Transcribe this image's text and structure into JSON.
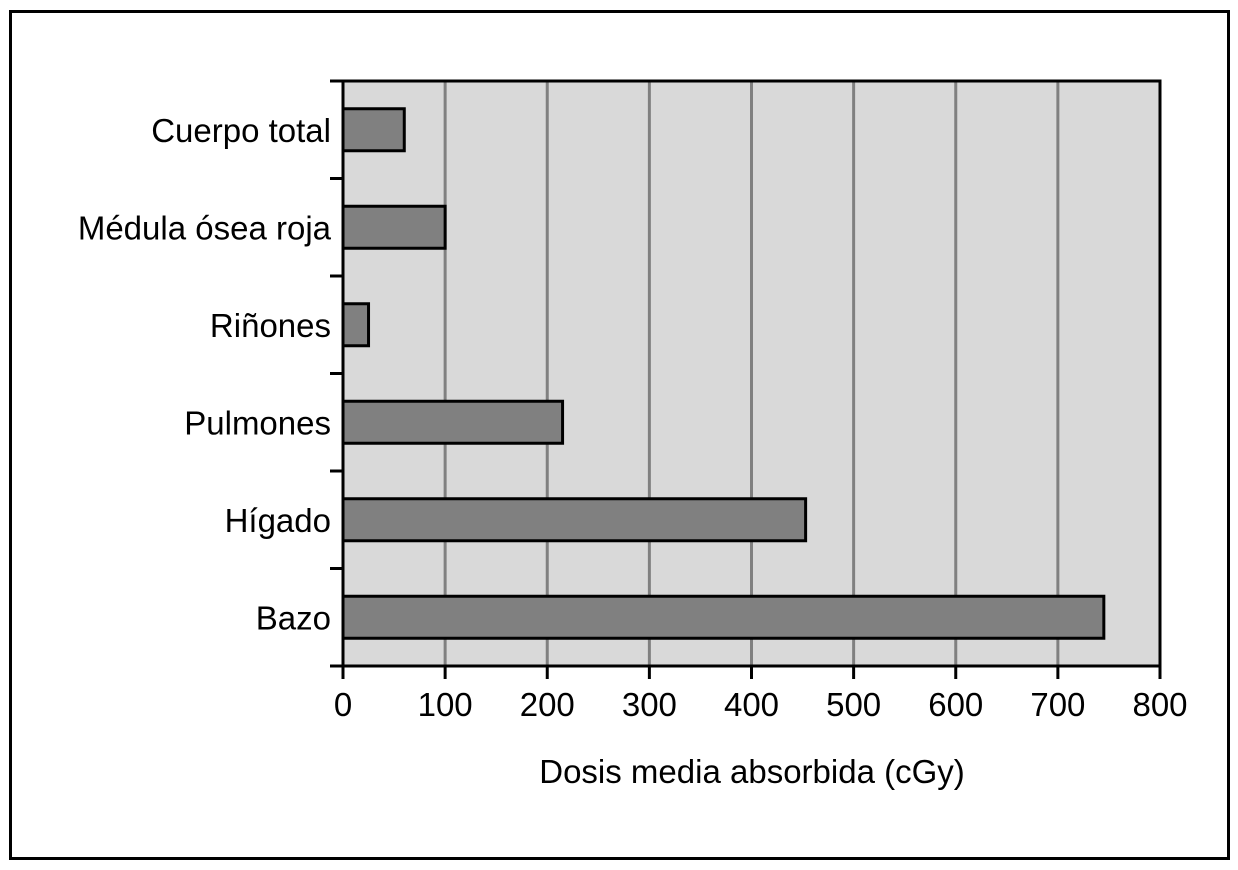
{
  "chart_data": {
    "type": "bar",
    "orientation": "horizontal",
    "categories": [
      "Cuerpo total",
      "Médula ósea roja",
      "Riñones",
      "Pulmones",
      "Hígado",
      "Bazo"
    ],
    "values": [
      60,
      100,
      25,
      215,
      453,
      745
    ],
    "xlabel": "Dosis media absorbida (cGy)",
    "ylabel": "",
    "xlim": [
      0,
      800
    ],
    "xticks": [
      "0",
      "100",
      "200",
      "300",
      "400",
      "500",
      "600",
      "700",
      "800"
    ],
    "grid": "vertical",
    "legend": "none",
    "colors": {
      "plot_background": "#d9d9d9",
      "bar_fill": "#808080",
      "bar_stroke": "#000000",
      "gridline": "#808080"
    }
  }
}
